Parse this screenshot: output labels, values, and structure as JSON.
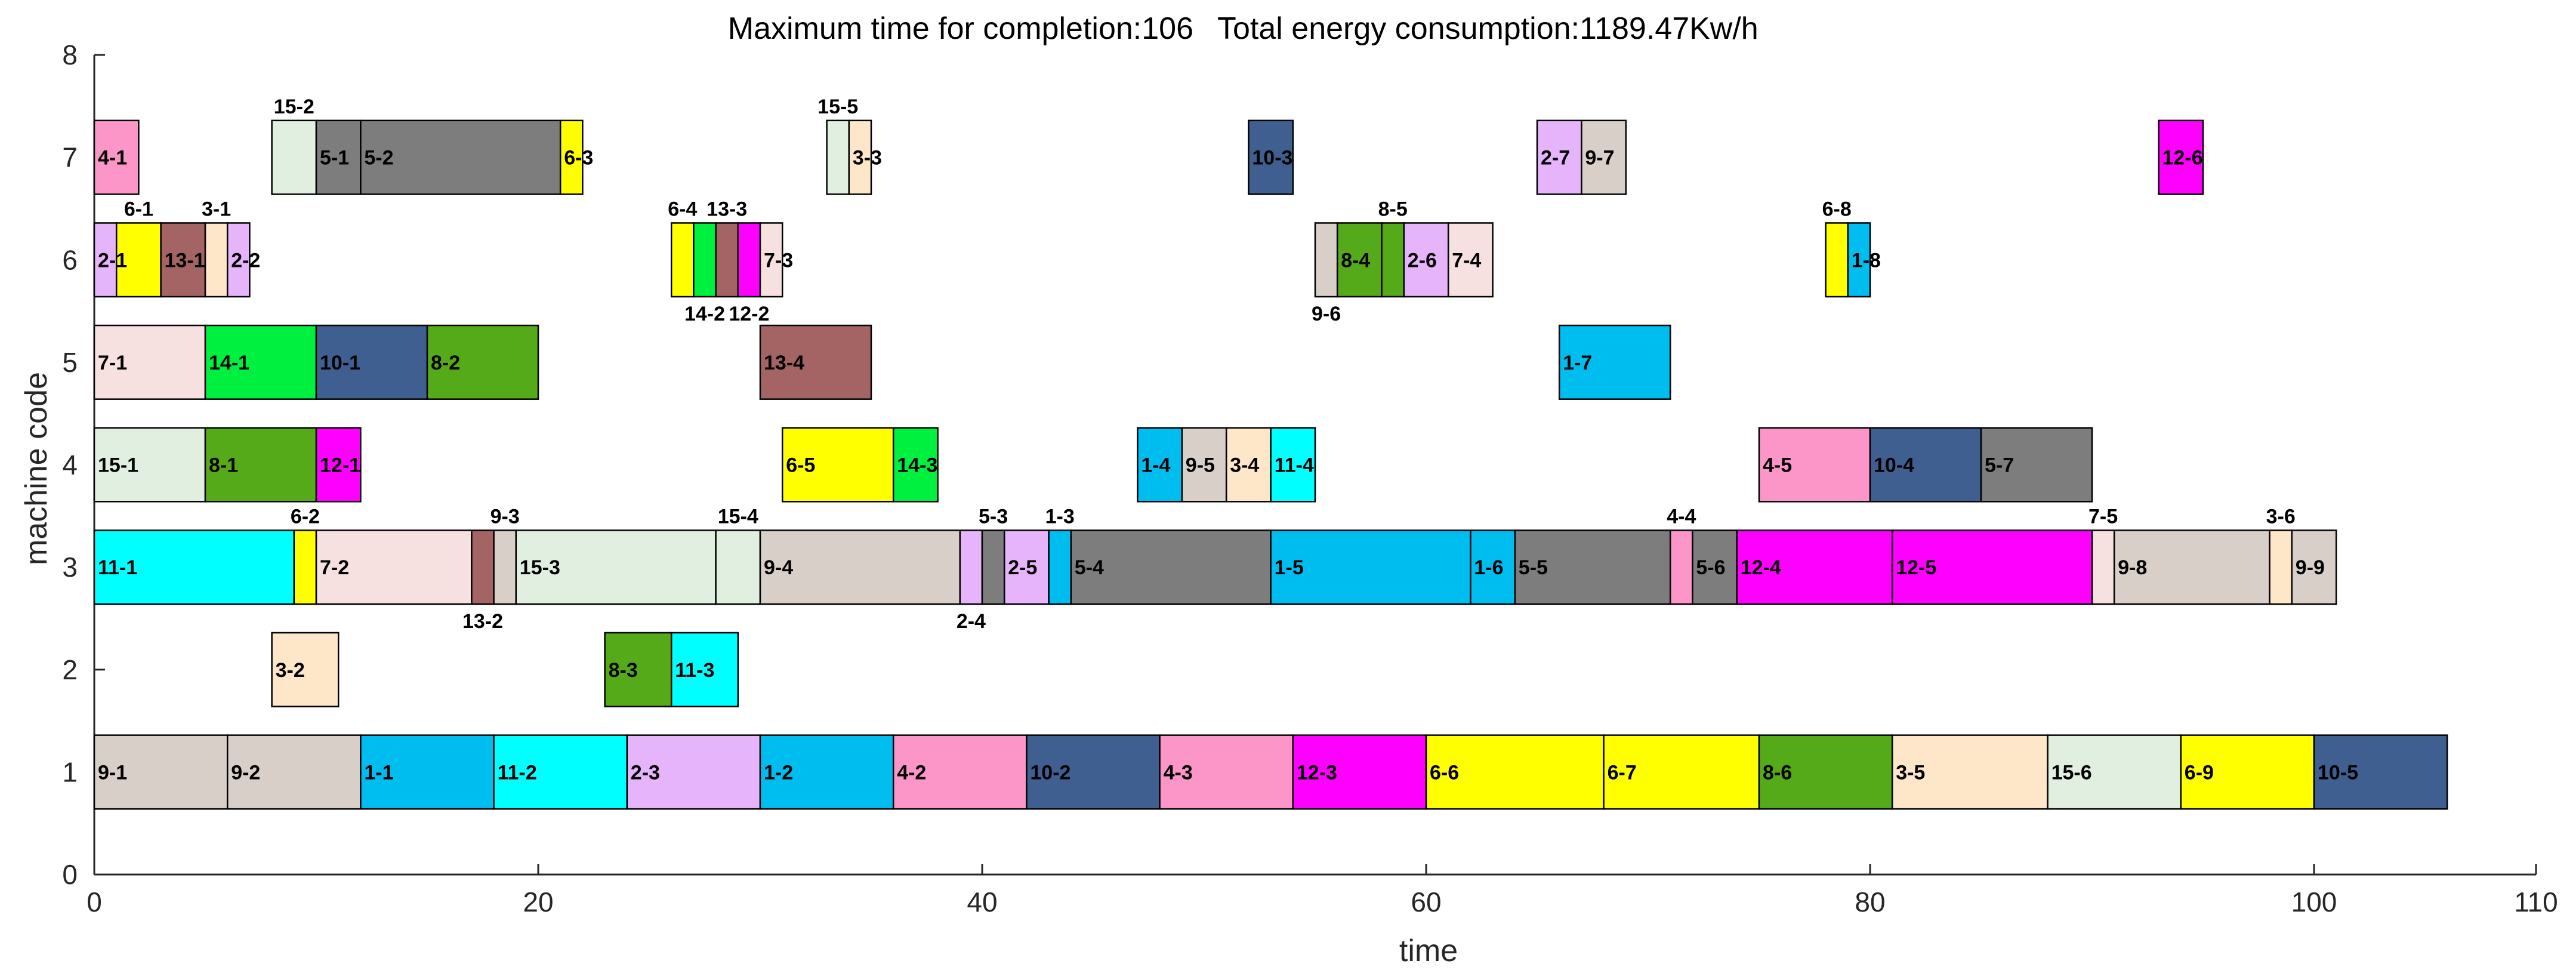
{
  "chart_data": {
    "type": "gantt",
    "title_parts": [
      "Maximum time for completion:106",
      "Total energy consumption:1189.47Kw/h"
    ],
    "xlabel": "time",
    "ylabel": "machine code",
    "xlim": [
      0,
      110
    ],
    "ylim": [
      0,
      8
    ],
    "xticks": [
      0,
      20,
      40,
      60,
      80,
      100,
      110
    ],
    "yticks": [
      0,
      1,
      2,
      3,
      4,
      5,
      6,
      7,
      8
    ],
    "colors": {
      "1": "#00bdf0",
      "2": "#e6b4fa",
      "3": "#fee6c8",
      "4": "#fc96c8",
      "5": "#7d7d7d",
      "6": "#ffff00",
      "7": "#f6e0e0",
      "8": "#54aa18",
      "9": "#d8d0c8",
      "10": "#405f91",
      "11": "#00ffff",
      "12": "#fe00fe",
      "13": "#a56464",
      "14": "#00f040",
      "15": "#e0efe0"
    },
    "tasks": [
      {
        "label": "9-1",
        "machine": 1,
        "start": 0,
        "end": 6,
        "label_pos": "inside"
      },
      {
        "label": "9-2",
        "machine": 1,
        "start": 6,
        "end": 12,
        "label_pos": "inside"
      },
      {
        "label": "1-1",
        "machine": 1,
        "start": 12,
        "end": 18,
        "label_pos": "inside"
      },
      {
        "label": "11-2",
        "machine": 1,
        "start": 18,
        "end": 24,
        "label_pos": "inside"
      },
      {
        "label": "2-3",
        "machine": 1,
        "start": 24,
        "end": 30,
        "label_pos": "inside"
      },
      {
        "label": "1-2",
        "machine": 1,
        "start": 30,
        "end": 36,
        "label_pos": "inside"
      },
      {
        "label": "4-2",
        "machine": 1,
        "start": 36,
        "end": 42,
        "label_pos": "inside"
      },
      {
        "label": "10-2",
        "machine": 1,
        "start": 42,
        "end": 48,
        "label_pos": "inside"
      },
      {
        "label": "4-3",
        "machine": 1,
        "start": 48,
        "end": 54,
        "label_pos": "inside"
      },
      {
        "label": "12-3",
        "machine": 1,
        "start": 54,
        "end": 60,
        "label_pos": "inside"
      },
      {
        "label": "6-6",
        "machine": 1,
        "start": 60,
        "end": 68,
        "label_pos": "inside"
      },
      {
        "label": "6-7",
        "machine": 1,
        "start": 68,
        "end": 75,
        "label_pos": "inside"
      },
      {
        "label": "8-6",
        "machine": 1,
        "start": 75,
        "end": 81,
        "label_pos": "inside"
      },
      {
        "label": "3-5",
        "machine": 1,
        "start": 81,
        "end": 88,
        "label_pos": "inside"
      },
      {
        "label": "15-6",
        "machine": 1,
        "start": 88,
        "end": 94,
        "label_pos": "inside"
      },
      {
        "label": "6-9",
        "machine": 1,
        "start": 94,
        "end": 100,
        "label_pos": "inside"
      },
      {
        "label": "10-5",
        "machine": 1,
        "start": 100,
        "end": 106,
        "label_pos": "inside"
      },
      {
        "label": "3-2",
        "machine": 2,
        "start": 8,
        "end": 11,
        "label_pos": "inside"
      },
      {
        "label": "8-3",
        "machine": 2,
        "start": 23,
        "end": 26,
        "label_pos": "inside"
      },
      {
        "label": "11-3",
        "machine": 2,
        "start": 26,
        "end": 29,
        "label_pos": "inside"
      },
      {
        "label": "11-1",
        "machine": 3,
        "start": 0,
        "end": 9,
        "label_pos": "inside"
      },
      {
        "label": "6-2",
        "machine": 3,
        "start": 9,
        "end": 10,
        "label_pos": "above"
      },
      {
        "label": "7-2",
        "machine": 3,
        "start": 10,
        "end": 17,
        "label_pos": "inside"
      },
      {
        "label": "13-2",
        "machine": 3,
        "start": 17,
        "end": 18,
        "label_pos": "below"
      },
      {
        "label": "9-3",
        "machine": 3,
        "start": 18,
        "end": 19,
        "label_pos": "above"
      },
      {
        "label": "15-3",
        "machine": 3,
        "start": 19,
        "end": 28,
        "label_pos": "inside"
      },
      {
        "label": "15-4",
        "machine": 3,
        "start": 28,
        "end": 30,
        "label_pos": "above"
      },
      {
        "label": "9-4",
        "machine": 3,
        "start": 30,
        "end": 39,
        "label_pos": "inside"
      },
      {
        "label": "2-4",
        "machine": 3,
        "start": 39,
        "end": 40,
        "label_pos": "below"
      },
      {
        "label": "5-3",
        "machine": 3,
        "start": 40,
        "end": 41,
        "label_pos": "above"
      },
      {
        "label": "2-5",
        "machine": 3,
        "start": 41,
        "end": 43,
        "label_pos": "inside"
      },
      {
        "label": "1-3",
        "machine": 3,
        "start": 43,
        "end": 44,
        "label_pos": "above"
      },
      {
        "label": "5-4",
        "machine": 3,
        "start": 44,
        "end": 53,
        "label_pos": "inside"
      },
      {
        "label": "1-5",
        "machine": 3,
        "start": 53,
        "end": 62,
        "label_pos": "inside"
      },
      {
        "label": "1-6",
        "machine": 3,
        "start": 62,
        "end": 64,
        "label_pos": "inside"
      },
      {
        "label": "5-5",
        "machine": 3,
        "start": 64,
        "end": 71,
        "label_pos": "inside"
      },
      {
        "label": "4-4",
        "machine": 3,
        "start": 71,
        "end": 72,
        "label_pos": "above"
      },
      {
        "label": "5-6",
        "machine": 3,
        "start": 72,
        "end": 74,
        "label_pos": "inside"
      },
      {
        "label": "12-4",
        "machine": 3,
        "start": 74,
        "end": 81,
        "label_pos": "inside"
      },
      {
        "label": "12-5",
        "machine": 3,
        "start": 81,
        "end": 90,
        "label_pos": "inside"
      },
      {
        "label": "7-5",
        "machine": 3,
        "start": 90,
        "end": 91,
        "label_pos": "above"
      },
      {
        "label": "9-8",
        "machine": 3,
        "start": 91,
        "end": 98,
        "label_pos": "inside"
      },
      {
        "label": "3-6",
        "machine": 3,
        "start": 98,
        "end": 99,
        "label_pos": "above"
      },
      {
        "label": "9-9",
        "machine": 3,
        "start": 99,
        "end": 101,
        "label_pos": "inside"
      },
      {
        "label": "15-1",
        "machine": 4,
        "start": 0,
        "end": 5,
        "label_pos": "inside"
      },
      {
        "label": "8-1",
        "machine": 4,
        "start": 5,
        "end": 10,
        "label_pos": "inside"
      },
      {
        "label": "12-1",
        "machine": 4,
        "start": 10,
        "end": 12,
        "label_pos": "inside"
      },
      {
        "label": "6-5",
        "machine": 4,
        "start": 31,
        "end": 36,
        "label_pos": "inside"
      },
      {
        "label": "14-3",
        "machine": 4,
        "start": 36,
        "end": 38,
        "label_pos": "inside"
      },
      {
        "label": "1-4",
        "machine": 4,
        "start": 47,
        "end": 49,
        "label_pos": "inside"
      },
      {
        "label": "9-5",
        "machine": 4,
        "start": 49,
        "end": 51,
        "label_pos": "inside"
      },
      {
        "label": "3-4",
        "machine": 4,
        "start": 51,
        "end": 53,
        "label_pos": "inside"
      },
      {
        "label": "11-4",
        "machine": 4,
        "start": 53,
        "end": 55,
        "label_pos": "inside"
      },
      {
        "label": "4-5",
        "machine": 4,
        "start": 75,
        "end": 80,
        "label_pos": "inside"
      },
      {
        "label": "10-4",
        "machine": 4,
        "start": 80,
        "end": 85,
        "label_pos": "inside"
      },
      {
        "label": "5-7",
        "machine": 4,
        "start": 85,
        "end": 90,
        "label_pos": "inside"
      },
      {
        "label": "7-1",
        "machine": 5,
        "start": 0,
        "end": 5,
        "label_pos": "inside"
      },
      {
        "label": "14-1",
        "machine": 5,
        "start": 5,
        "end": 10,
        "label_pos": "inside"
      },
      {
        "label": "10-1",
        "machine": 5,
        "start": 10,
        "end": 15,
        "label_pos": "inside"
      },
      {
        "label": "8-2",
        "machine": 5,
        "start": 15,
        "end": 20,
        "label_pos": "inside"
      },
      {
        "label": "13-4",
        "machine": 5,
        "start": 30,
        "end": 35,
        "label_pos": "inside"
      },
      {
        "label": "1-7",
        "machine": 5,
        "start": 66,
        "end": 71,
        "label_pos": "inside"
      },
      {
        "label": "2-1",
        "machine": 6,
        "start": 0,
        "end": 1,
        "label_pos": "inside"
      },
      {
        "label": "6-1",
        "machine": 6,
        "start": 1,
        "end": 3,
        "label_pos": "above"
      },
      {
        "label": "13-1",
        "machine": 6,
        "start": 3,
        "end": 5,
        "label_pos": "inside"
      },
      {
        "label": "3-1",
        "machine": 6,
        "start": 5,
        "end": 6,
        "label_pos": "above"
      },
      {
        "label": "2-2",
        "machine": 6,
        "start": 6,
        "end": 7,
        "label_pos": "inside"
      },
      {
        "label": "6-4",
        "machine": 6,
        "start": 26,
        "end": 27,
        "label_pos": "above"
      },
      {
        "label": "14-2",
        "machine": 6,
        "start": 27,
        "end": 28,
        "label_pos": "below"
      },
      {
        "label": "13-3",
        "machine": 6,
        "start": 28,
        "end": 29,
        "label_pos": "above"
      },
      {
        "label": "12-2",
        "machine": 6,
        "start": 29,
        "end": 30,
        "label_pos": "below"
      },
      {
        "label": "7-3",
        "machine": 6,
        "start": 30,
        "end": 31,
        "label_pos": "inside"
      },
      {
        "label": "9-6",
        "machine": 6,
        "start": 55,
        "end": 56,
        "label_pos": "below"
      },
      {
        "label": "8-4",
        "machine": 6,
        "start": 56,
        "end": 58,
        "label_pos": "inside"
      },
      {
        "label": "8-5",
        "machine": 6,
        "start": 58,
        "end": 59,
        "label_pos": "above"
      },
      {
        "label": "2-6",
        "machine": 6,
        "start": 59,
        "end": 61,
        "label_pos": "inside"
      },
      {
        "label": "7-4",
        "machine": 6,
        "start": 61,
        "end": 63,
        "label_pos": "inside"
      },
      {
        "label": "6-8",
        "machine": 6,
        "start": 78,
        "end": 79,
        "label_pos": "above"
      },
      {
        "label": "1-8",
        "machine": 6,
        "start": 79,
        "end": 80,
        "label_pos": "inside"
      },
      {
        "label": "4-1",
        "machine": 7,
        "start": 0,
        "end": 2,
        "label_pos": "inside"
      },
      {
        "label": "15-2",
        "machine": 7,
        "start": 8,
        "end": 10,
        "label_pos": "above"
      },
      {
        "label": "5-1",
        "machine": 7,
        "start": 10,
        "end": 12,
        "label_pos": "inside"
      },
      {
        "label": "5-2",
        "machine": 7,
        "start": 12,
        "end": 21,
        "label_pos": "inside"
      },
      {
        "label": "6-3",
        "machine": 7,
        "start": 21,
        "end": 22,
        "label_pos": "inside"
      },
      {
        "label": "15-5",
        "machine": 7,
        "start": 33,
        "end": 34,
        "label_pos": "above"
      },
      {
        "label": "3-3",
        "machine": 7,
        "start": 34,
        "end": 35,
        "label_pos": "inside"
      },
      {
        "label": "10-3",
        "machine": 7,
        "start": 52,
        "end": 54,
        "label_pos": "inside"
      },
      {
        "label": "2-7",
        "machine": 7,
        "start": 65,
        "end": 67,
        "label_pos": "inside"
      },
      {
        "label": "9-7",
        "machine": 7,
        "start": 67,
        "end": 69,
        "label_pos": "inside"
      },
      {
        "label": "12-6",
        "machine": 7,
        "start": 93,
        "end": 95,
        "label_pos": "inside"
      }
    ]
  }
}
